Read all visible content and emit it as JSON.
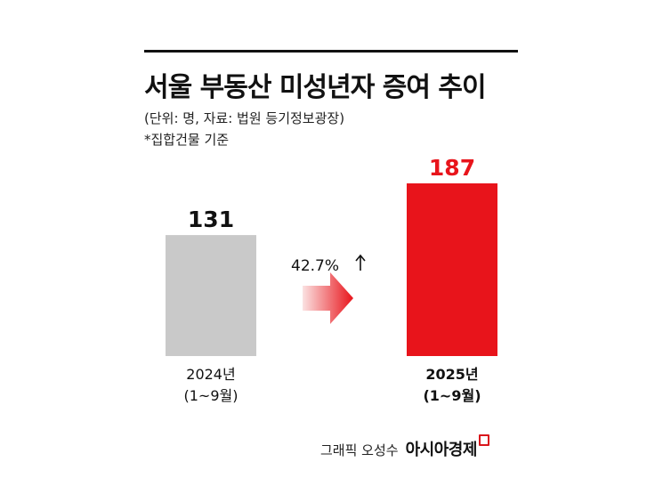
{
  "header": {
    "title": "서울 부동산 미성년자 증여 추이",
    "subtitle": "(단위: 명, 자료: 법원 등기정보광장)",
    "note": "*집합건물 기준"
  },
  "colors": {
    "bar_2024": "#c9c9c9",
    "bar_2025": "#e8141b",
    "value_2025": "#e8141b",
    "arrow_start": "#fbe2e2",
    "arrow_end": "#e8141b"
  },
  "chart_data": {
    "type": "bar",
    "title": "서울 부동산 미성년자 증여 추이",
    "categories": [
      "2024년\n(1~9월)",
      "2025년\n(1~9월)"
    ],
    "category_lines": [
      [
        "2024년",
        "(1~9월)"
      ],
      [
        "2025년",
        "(1~9월)"
      ]
    ],
    "values": [
      131,
      187
    ],
    "value_labels": [
      "131",
      "187"
    ],
    "ylim": [
      0,
      187
    ],
    "grid": false,
    "legend": "none",
    "annotation": {
      "text": "42.7%",
      "arrow_icon": "up-arrow-icon",
      "between": [
        "2024년",
        "2025년"
      ]
    }
  },
  "credit": {
    "text": "그래픽 오성수",
    "brand": "아시아경제",
    "brand_icon": "brand-mark-icon"
  }
}
